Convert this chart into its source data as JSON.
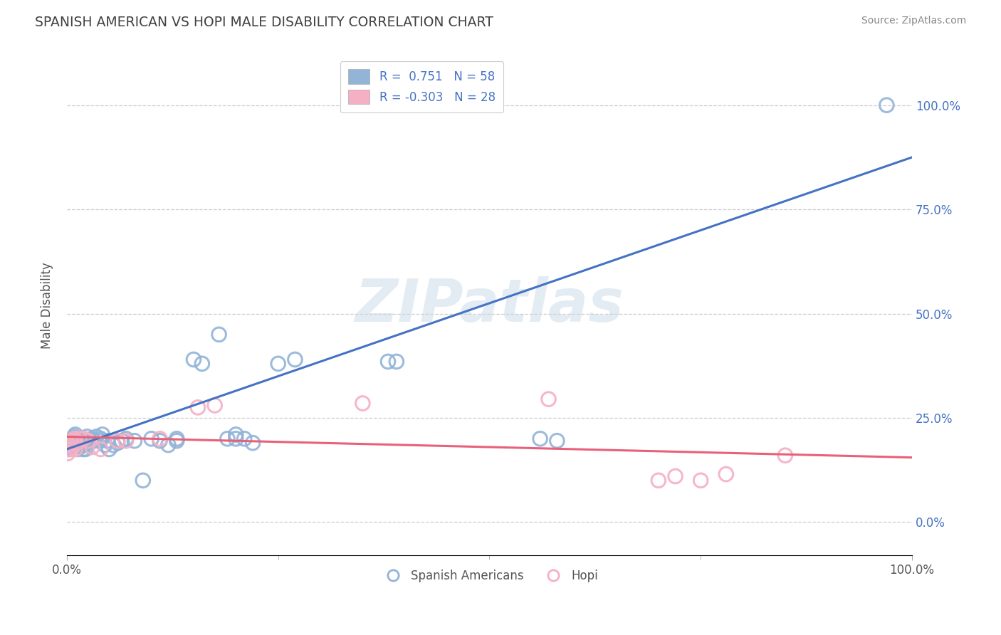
{
  "title": "SPANISH AMERICAN VS HOPI MALE DISABILITY CORRELATION CHART",
  "source": "Source: ZipAtlas.com",
  "ylabel": "Male Disability",
  "watermark": "ZIPatlas",
  "blue_color": "#92b4d7",
  "pink_color": "#f5b0c5",
  "line_blue": "#4472c4",
  "line_pink": "#e8607a",
  "title_color": "#404040",
  "source_color": "#888888",
  "legend_text_color": "#4472c4",
  "blue_line_x0": 0.0,
  "blue_line_y0": 0.175,
  "blue_line_x1": 1.0,
  "blue_line_y1": 0.875,
  "pink_line_x0": 0.0,
  "pink_line_y0": 0.205,
  "pink_line_x1": 1.0,
  "pink_line_y1": 0.155,
  "xlim": [
    0.0,
    1.0
  ],
  "ylim": [
    -0.08,
    1.12
  ],
  "yticks": [
    0.0,
    0.25,
    0.5,
    0.75,
    1.0
  ],
  "ytick_labels_right": [
    "0.0%",
    "25.0%",
    "50.0%",
    "75.0%",
    "100.0%"
  ],
  "sa_x": [
    0.002,
    0.003,
    0.004,
    0.005,
    0.006,
    0.007,
    0.008,
    0.009,
    0.01,
    0.011,
    0.012,
    0.013,
    0.014,
    0.015,
    0.016,
    0.017,
    0.018,
    0.019,
    0.02,
    0.021,
    0.022,
    0.023,
    0.024,
    0.03,
    0.032,
    0.035,
    0.038,
    0.04,
    0.042,
    0.045,
    0.048,
    0.05,
    0.055,
    0.06,
    0.065,
    0.07,
    0.08,
    0.09,
    0.1,
    0.11,
    0.12,
    0.13,
    0.15,
    0.16,
    0.18,
    0.19,
    0.2,
    0.21,
    0.22,
    0.25,
    0.27,
    0.13,
    0.2,
    0.38,
    0.39,
    0.56,
    0.58,
    0.97
  ],
  "sa_y": [
    0.175,
    0.18,
    0.185,
    0.19,
    0.195,
    0.2,
    0.2,
    0.205,
    0.21,
    0.195,
    0.185,
    0.175,
    0.185,
    0.195,
    0.2,
    0.19,
    0.185,
    0.175,
    0.195,
    0.185,
    0.175,
    0.19,
    0.205,
    0.2,
    0.195,
    0.205,
    0.195,
    0.2,
    0.21,
    0.185,
    0.195,
    0.175,
    0.185,
    0.19,
    0.195,
    0.2,
    0.195,
    0.1,
    0.2,
    0.195,
    0.185,
    0.195,
    0.39,
    0.38,
    0.45,
    0.2,
    0.21,
    0.2,
    0.19,
    0.38,
    0.39,
    0.2,
    0.2,
    0.385,
    0.385,
    0.2,
    0.195,
    1.0
  ],
  "hopi_x": [
    0.001,
    0.002,
    0.003,
    0.004,
    0.005,
    0.006,
    0.007,
    0.008,
    0.009,
    0.01,
    0.011,
    0.015,
    0.02,
    0.025,
    0.03,
    0.04,
    0.06,
    0.07,
    0.11,
    0.155,
    0.175,
    0.35,
    0.57,
    0.7,
    0.72,
    0.75,
    0.78,
    0.85
  ],
  "hopi_y": [
    0.165,
    0.175,
    0.185,
    0.175,
    0.195,
    0.19,
    0.18,
    0.195,
    0.2,
    0.175,
    0.19,
    0.2,
    0.2,
    0.195,
    0.18,
    0.175,
    0.195,
    0.195,
    0.2,
    0.275,
    0.28,
    0.285,
    0.295,
    0.1,
    0.11,
    0.1,
    0.115,
    0.16
  ]
}
